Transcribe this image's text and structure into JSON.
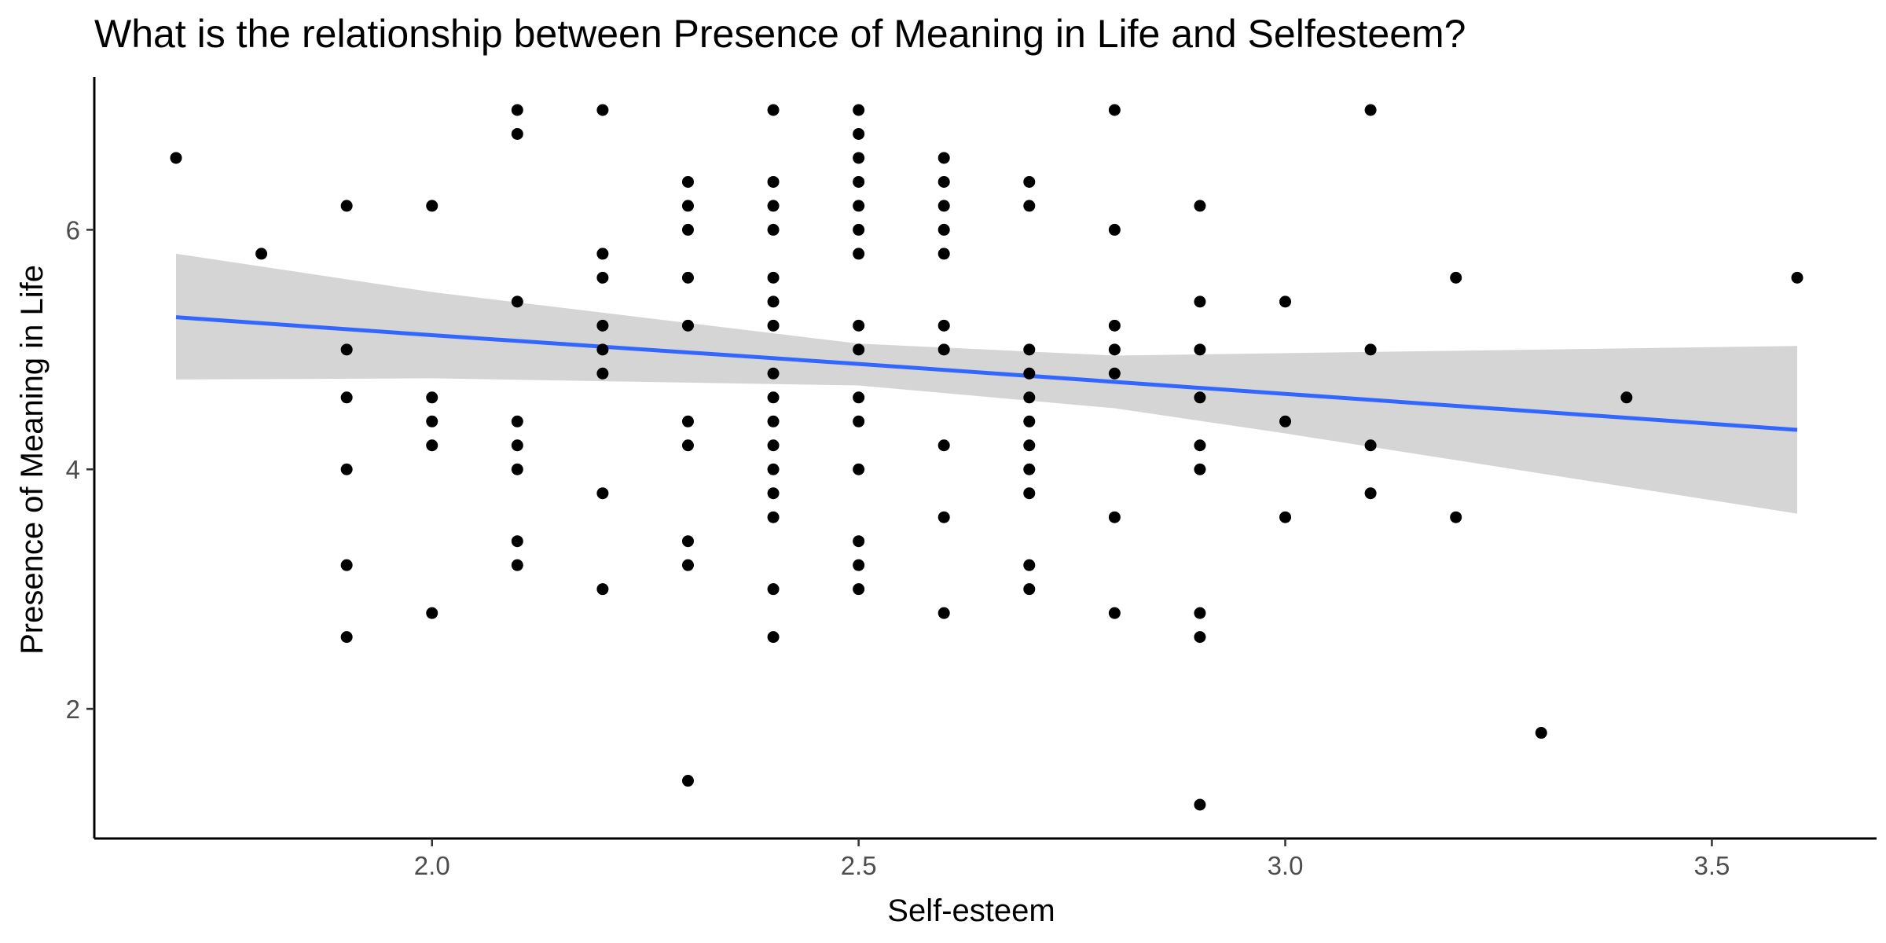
{
  "chart_data": {
    "type": "scatter",
    "title": "What is the relationship between Presence of Meaning in Life and Selfesteem?",
    "xlabel": "Self-esteem",
    "ylabel": "Presence of Meaning in Life",
    "xlim": [
      1.7,
      3.6
    ],
    "ylim": [
      1.2,
      7.0
    ],
    "xticks": [
      2.0,
      2.5,
      3.0,
      3.5
    ],
    "xtick_labels": [
      "2.0",
      "2.5",
      "3.0",
      "3.5"
    ],
    "yticks": [
      2,
      4,
      6
    ],
    "ytick_labels": [
      "2",
      "4",
      "6"
    ],
    "grid": false,
    "point_color": "#000000",
    "points": [
      [
        1.7,
        6.6
      ],
      [
        1.8,
        5.8
      ],
      [
        1.9,
        6.2
      ],
      [
        1.9,
        5.0
      ],
      [
        1.9,
        4.6
      ],
      [
        1.9,
        4.0
      ],
      [
        1.9,
        3.2
      ],
      [
        1.9,
        2.6
      ],
      [
        2.0,
        6.2
      ],
      [
        2.0,
        4.6
      ],
      [
        2.0,
        4.4
      ],
      [
        2.0,
        4.2
      ],
      [
        2.0,
        2.8
      ],
      [
        2.1,
        7.0
      ],
      [
        2.1,
        6.8
      ],
      [
        2.1,
        5.4
      ],
      [
        2.1,
        4.4
      ],
      [
        2.1,
        4.2
      ],
      [
        2.1,
        4.0
      ],
      [
        2.1,
        3.4
      ],
      [
        2.1,
        3.2
      ],
      [
        2.2,
        7.0
      ],
      [
        2.2,
        5.8
      ],
      [
        2.2,
        5.6
      ],
      [
        2.2,
        5.2
      ],
      [
        2.2,
        5.0
      ],
      [
        2.2,
        4.8
      ],
      [
        2.2,
        3.8
      ],
      [
        2.2,
        3.0
      ],
      [
        2.3,
        6.4
      ],
      [
        2.3,
        6.2
      ],
      [
        2.3,
        6.0
      ],
      [
        2.3,
        5.6
      ],
      [
        2.3,
        5.2
      ],
      [
        2.3,
        4.4
      ],
      [
        2.3,
        4.2
      ],
      [
        2.3,
        3.4
      ],
      [
        2.3,
        3.2
      ],
      [
        2.3,
        1.4
      ],
      [
        2.4,
        7.0
      ],
      [
        2.4,
        6.4
      ],
      [
        2.4,
        6.2
      ],
      [
        2.4,
        6.0
      ],
      [
        2.4,
        5.6
      ],
      [
        2.4,
        5.4
      ],
      [
        2.4,
        5.2
      ],
      [
        2.4,
        4.8
      ],
      [
        2.4,
        4.6
      ],
      [
        2.4,
        4.4
      ],
      [
        2.4,
        4.2
      ],
      [
        2.4,
        4.0
      ],
      [
        2.4,
        3.8
      ],
      [
        2.4,
        3.6
      ],
      [
        2.4,
        3.0
      ],
      [
        2.4,
        2.6
      ],
      [
        2.5,
        7.0
      ],
      [
        2.5,
        6.8
      ],
      [
        2.5,
        6.6
      ],
      [
        2.5,
        6.4
      ],
      [
        2.5,
        6.2
      ],
      [
        2.5,
        6.0
      ],
      [
        2.5,
        5.8
      ],
      [
        2.5,
        5.2
      ],
      [
        2.5,
        5.0
      ],
      [
        2.5,
        4.6
      ],
      [
        2.5,
        4.4
      ],
      [
        2.5,
        4.0
      ],
      [
        2.5,
        3.4
      ],
      [
        2.5,
        3.2
      ],
      [
        2.5,
        3.0
      ],
      [
        2.6,
        6.6
      ],
      [
        2.6,
        6.4
      ],
      [
        2.6,
        6.2
      ],
      [
        2.6,
        6.0
      ],
      [
        2.6,
        5.8
      ],
      [
        2.6,
        5.2
      ],
      [
        2.6,
        5.0
      ],
      [
        2.6,
        4.2
      ],
      [
        2.6,
        3.6
      ],
      [
        2.6,
        2.8
      ],
      [
        2.7,
        6.4
      ],
      [
        2.7,
        6.2
      ],
      [
        2.7,
        5.0
      ],
      [
        2.7,
        4.8
      ],
      [
        2.7,
        4.6
      ],
      [
        2.7,
        4.4
      ],
      [
        2.7,
        4.2
      ],
      [
        2.7,
        4.0
      ],
      [
        2.7,
        3.8
      ],
      [
        2.7,
        3.2
      ],
      [
        2.7,
        3.0
      ],
      [
        2.8,
        7.0
      ],
      [
        2.8,
        6.0
      ],
      [
        2.8,
        5.2
      ],
      [
        2.8,
        5.0
      ],
      [
        2.8,
        4.8
      ],
      [
        2.8,
        3.6
      ],
      [
        2.8,
        2.8
      ],
      [
        2.9,
        6.2
      ],
      [
        2.9,
        5.4
      ],
      [
        2.9,
        5.0
      ],
      [
        2.9,
        4.6
      ],
      [
        2.9,
        4.2
      ],
      [
        2.9,
        4.0
      ],
      [
        2.9,
        2.8
      ],
      [
        2.9,
        2.6
      ],
      [
        2.9,
        1.2
      ],
      [
        3.0,
        5.4
      ],
      [
        3.0,
        4.4
      ],
      [
        3.0,
        3.6
      ],
      [
        3.1,
        7.0
      ],
      [
        3.1,
        5.0
      ],
      [
        3.1,
        4.2
      ],
      [
        3.1,
        3.8
      ],
      [
        3.2,
        5.6
      ],
      [
        3.2,
        3.6
      ],
      [
        3.3,
        1.8
      ],
      [
        3.4,
        4.6
      ],
      [
        3.6,
        5.6
      ]
    ],
    "trend_line": {
      "color": "#3366FF",
      "band_color": "#d3d3d3",
      "x": [
        1.7,
        2.0,
        2.5,
        2.8,
        3.0,
        3.6
      ],
      "y": [
        5.27,
        5.12,
        4.88,
        4.73,
        4.63,
        4.33
      ],
      "lower": [
        4.75,
        4.76,
        4.7,
        4.51,
        4.3,
        3.63
      ],
      "upper": [
        5.8,
        5.48,
        5.05,
        4.95,
        4.97,
        5.03
      ]
    }
  }
}
